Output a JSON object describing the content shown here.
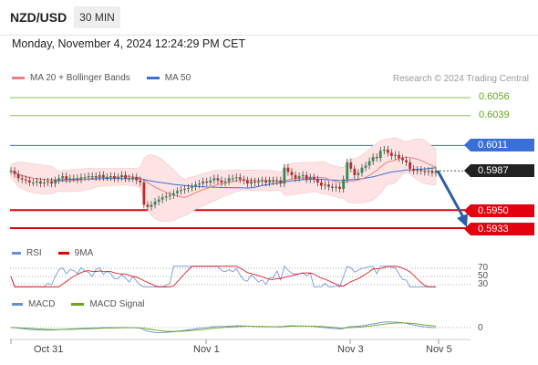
{
  "header": {
    "symbol": "NZD/USD",
    "timeframe": "30 MIN"
  },
  "datetime": "Monday, November 4, 2024 12:24:29 PM CET",
  "legend": {
    "ma20": "MA 20 + Bollinger Bands",
    "ma50": "MA 50",
    "research": "Research © 2024 Trading Central"
  },
  "levels": {
    "r2": "0.6056",
    "r1": "0.6039",
    "pivot": "0.6011",
    "last": "0.5987",
    "s1": "0.5950",
    "s2": "0.5933"
  },
  "rsi": {
    "label": "RSI",
    "ma_label": "9MA",
    "levels": [
      "70",
      "50",
      "30"
    ]
  },
  "macd": {
    "label": "MACD",
    "signal_label": "MACD Signal",
    "zero": "0"
  },
  "xaxis": [
    "Oct 31",
    "Nov 1",
    "Nov 3",
    "Nov 5"
  ],
  "colors": {
    "resistance": "#8bc34a",
    "pivot": "#3a6fd8",
    "support": "#e3000f",
    "last": "#222222",
    "ma20": "#f08080",
    "ma50": "#3a6fd8",
    "band": "#fde3e3",
    "arrow": "#2e5ea8",
    "up": "#2e8b57",
    "down": "#c62828",
    "rsi": "#6a8fd8",
    "rsi_ma": "#e3000f",
    "macd": "#6a8fd8",
    "macd_signal": "#6aa51e"
  },
  "chart_data": {
    "type": "candlestick",
    "instrument": "NZD/USD",
    "timeframe": "30 MIN",
    "x_ticks": [
      "Oct 31",
      "Nov 1",
      "Nov 3",
      "Nov 5"
    ],
    "price_levels": [
      0.6056,
      0.6039,
      0.6011,
      0.5987,
      0.595,
      0.5933
    ],
    "last_price": 0.5987,
    "closes": [
      0.5987,
      0.5984,
      0.598,
      0.5979,
      0.5978,
      0.5976,
      0.5976,
      0.5977,
      0.5975,
      0.5976,
      0.5977,
      0.5975,
      0.5978,
      0.598,
      0.5982,
      0.5979,
      0.598,
      0.598,
      0.5979,
      0.5981,
      0.5981,
      0.5982,
      0.5982,
      0.5981,
      0.5983,
      0.5981,
      0.5981,
      0.5982,
      0.598,
      0.5981,
      0.5983,
      0.598,
      0.598,
      0.5981,
      0.5978,
      0.5976,
      0.5955,
      0.5953,
      0.5955,
      0.5958,
      0.596,
      0.5962,
      0.5963,
      0.5964,
      0.5966,
      0.5968,
      0.5969,
      0.597,
      0.5971,
      0.5972,
      0.5974,
      0.5975,
      0.5977,
      0.5976,
      0.5978,
      0.598,
      0.5978,
      0.5976,
      0.5977,
      0.598,
      0.598,
      0.5981,
      0.5979,
      0.5978,
      0.5975,
      0.5977,
      0.5976,
      0.5977,
      0.5978,
      0.5976,
      0.5978,
      0.5977,
      0.5978,
      0.5975,
      0.599,
      0.5986,
      0.5983,
      0.598,
      0.5982,
      0.5983,
      0.5979,
      0.5981,
      0.5979,
      0.5976,
      0.5973,
      0.5974,
      0.5972,
      0.5971,
      0.5972,
      0.597,
      0.5979,
      0.5995,
      0.5989,
      0.5983,
      0.5985,
      0.599,
      0.5992,
      0.5996,
      0.6,
      0.5999,
      0.6006,
      0.6007,
      0.6004,
      0.6001,
      0.6002,
      0.5999,
      0.5997,
      0.5995,
      0.5989,
      0.5987,
      0.5988,
      0.5987,
      0.5986,
      0.5987,
      0.5985,
      0.5987
    ],
    "rsi_levels": [
      70,
      50,
      30
    ],
    "macd_zero": 0
  }
}
